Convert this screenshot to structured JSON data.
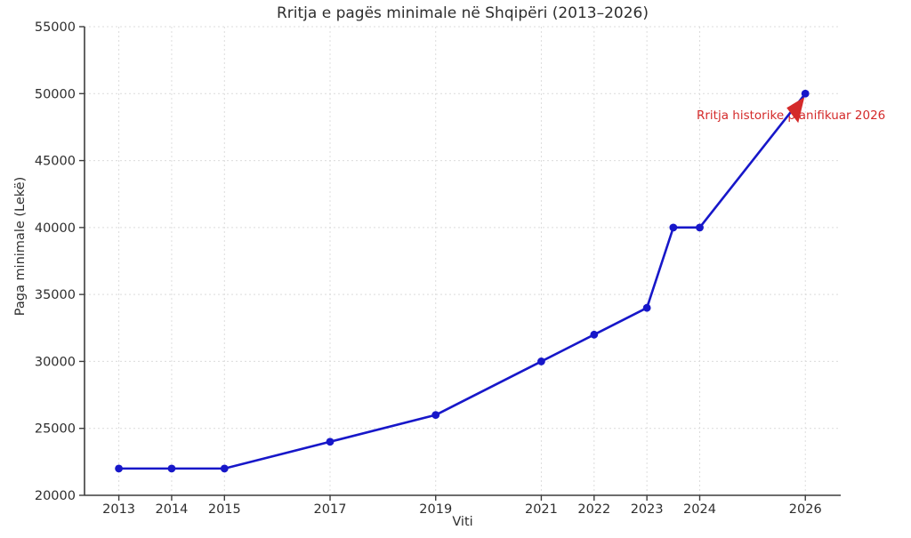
{
  "chart_data": {
    "type": "line",
    "title": "Rritja e pagës minimale në Shqipëri (2013–2026)",
    "xlabel": "Viti",
    "ylabel": "Paga minimale (Lekë)",
    "x": [
      2013,
      2014,
      2015,
      2017,
      2019,
      2021,
      2022,
      2023,
      2023.5,
      2024,
      2026
    ],
    "values": [
      22000,
      22000,
      22000,
      24000,
      26000,
      30000,
      32000,
      34000,
      40000,
      40000,
      50000
    ],
    "xticks": [
      2013,
      2014,
      2015,
      2017,
      2019,
      2021,
      2022,
      2023,
      2024,
      2026
    ],
    "yticks": [
      20000,
      25000,
      30000,
      35000,
      40000,
      45000,
      50000,
      55000
    ],
    "xlim": [
      2012.35,
      2026.67
    ],
    "ylim": [
      20000,
      55000
    ],
    "grid": true,
    "legend": "none",
    "colors": {
      "line": "#1717c9",
      "marker": "#1717c9",
      "grid": "#dcdcdc",
      "axis": "#3d3d3d",
      "tick_text": "#2e2e2e",
      "annotation": "#d42a2a"
    },
    "annotation": {
      "text": "Rritja historike planifikuar 2026",
      "target_x": 2026,
      "target_y": 50000
    }
  }
}
